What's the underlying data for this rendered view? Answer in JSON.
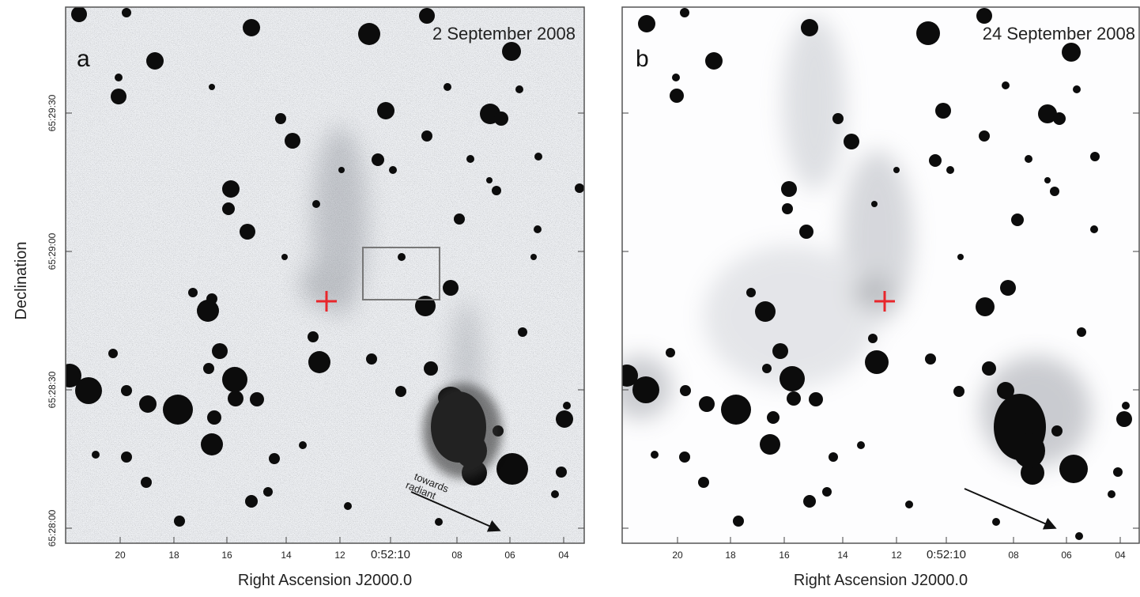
{
  "figure": {
    "ylabel": "Declination",
    "panels": [
      {
        "letter": "a",
        "date": "2 September 2008",
        "xlabel": "Right Ascension J2000.0",
        "x_ticks": [
          "20",
          "18",
          "16",
          "14",
          "12",
          "0:52:10",
          "08",
          "06",
          "04"
        ],
        "y_ticks": [
          "65:29:30",
          "65:29:00",
          "65:28:30",
          "65:28:00"
        ],
        "annotation": "towards\nradiant",
        "has_box": true,
        "has_arrow": true,
        "marker_color": "#e8262b"
      },
      {
        "letter": "b",
        "date": "24 September 2008",
        "xlabel": "Right Ascension J2000.0",
        "x_ticks": [
          "20",
          "18",
          "16",
          "14",
          "12",
          "0:52:10",
          "08",
          "06",
          "04"
        ],
        "y_ticks": [],
        "annotation": "",
        "has_box": false,
        "has_arrow": true,
        "marker_color": "#e8262b"
      }
    ]
  }
}
